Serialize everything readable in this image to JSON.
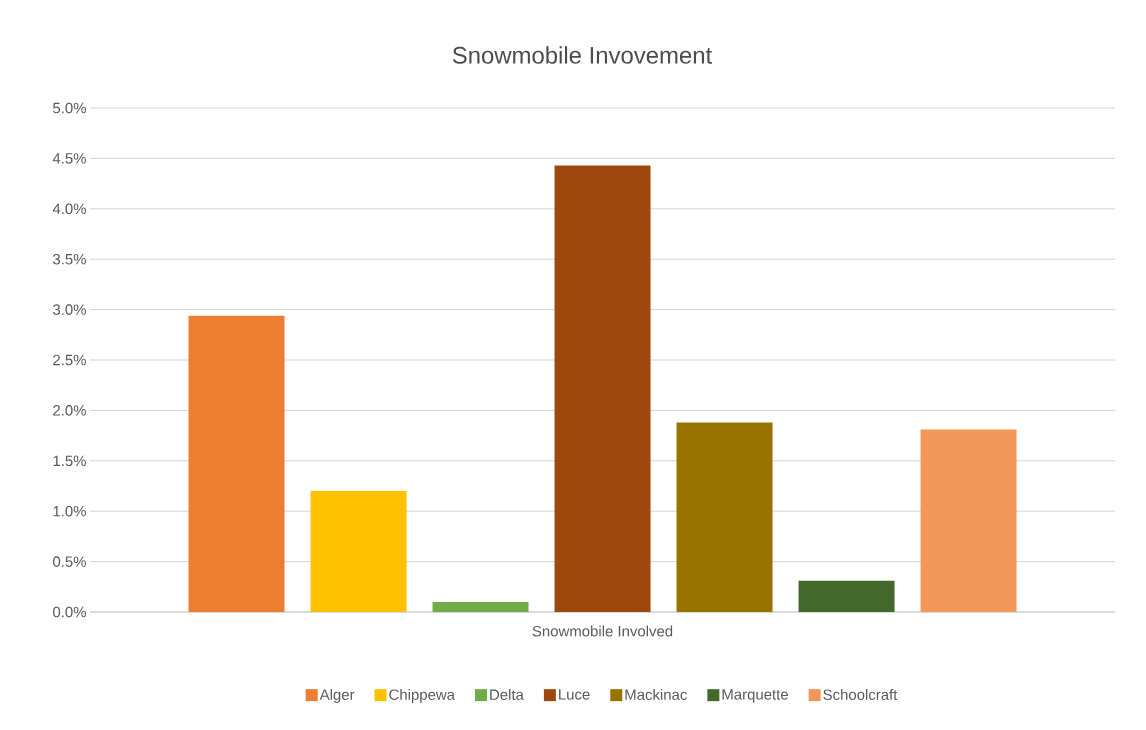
{
  "chart_data": {
    "type": "bar",
    "title": "Snowmobile Invovement",
    "categories": [
      "Snowmobile Involved"
    ],
    "series": [
      {
        "name": "Alger",
        "color": "#ed7d31",
        "values": [
          2.94
        ]
      },
      {
        "name": "Chippewa",
        "color": "#ffc000",
        "values": [
          1.2
        ]
      },
      {
        "name": "Delta",
        "color": "#70ad47",
        "values": [
          0.1
        ]
      },
      {
        "name": "Luce",
        "color": "#9e480e",
        "values": [
          4.43
        ]
      },
      {
        "name": "Mackinac",
        "color": "#997300",
        "values": [
          1.88
        ]
      },
      {
        "name": "Marquette",
        "color": "#43682b",
        "values": [
          0.31
        ]
      },
      {
        "name": "Schoolcraft",
        "color": "#f1975a",
        "values": [
          1.81
        ]
      }
    ],
    "ylim": [
      0,
      5
    ],
    "yticks": [
      {
        "value": 0,
        "label": "0.0%"
      },
      {
        "value": 0.5,
        "label": "0.5%"
      },
      {
        "value": 1,
        "label": "1.0%"
      },
      {
        "value": 1.5,
        "label": "1.5%"
      },
      {
        "value": 2,
        "label": "2.0%"
      },
      {
        "value": 2.5,
        "label": "2.5%"
      },
      {
        "value": 3,
        "label": "3.0%"
      },
      {
        "value": 3.5,
        "label": "3.5%"
      },
      {
        "value": 4,
        "label": "4.0%"
      },
      {
        "value": 4.5,
        "label": "4.5%"
      },
      {
        "value": 5,
        "label": "5.0%"
      }
    ],
    "grid": "y",
    "legend": "bottom"
  }
}
